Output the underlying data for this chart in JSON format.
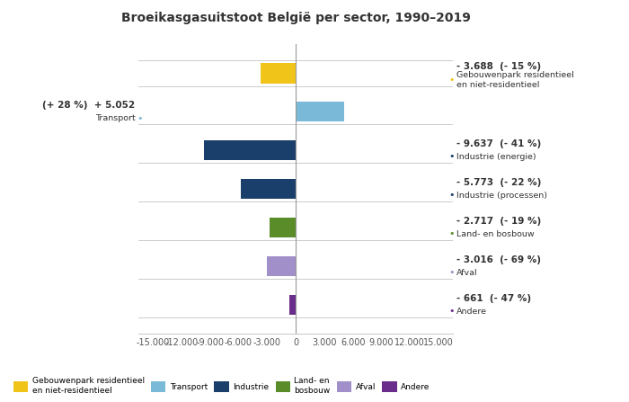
{
  "title": "Broeikasgasuitstoot België per sector, 1990–2019",
  "categories": [
    "Gebouwenpark residentieel\nen niet-residentieel",
    "Transport",
    "Industrie (energie)",
    "Industrie (processen)",
    "Land- en bosbouw",
    "Afval",
    "Andere"
  ],
  "values": [
    -3688,
    5052,
    -9637,
    -5773,
    -2717,
    -3016,
    -661
  ],
  "colors": [
    "#f0c419",
    "#7ab9d8",
    "#1b3f6b",
    "#1b3f6b",
    "#5a8c2a",
    "#a08fc8",
    "#6b2d8b"
  ],
  "annot": [
    {
      "val": "- 3.688  (- 15 %)",
      "sub": "Gebouwenpark residentieel\nen niet-residentieel",
      "dot": "#f0c419",
      "side": "right"
    },
    {
      "val": "(+ 28 %)  + 5.052",
      "sub": "Transport",
      "dot": "#7ab9d8",
      "side": "left"
    },
    {
      "val": "- 9.637  (- 41 %)",
      "sub": "Industrie (energie)",
      "dot": "#1b3f6b",
      "side": "right"
    },
    {
      "val": "- 5.773  (- 22 %)",
      "sub": "Industrie (processen)",
      "dot": "#1b3f6b",
      "side": "right"
    },
    {
      "val": "- 2.717  (- 19 %)",
      "sub": "Land- en bosbouw",
      "dot": "#5a8c2a",
      "side": "right"
    },
    {
      "val": "- 3.016  (- 69 %)",
      "sub": "Afval",
      "dot": "#a08fc8",
      "side": "right"
    },
    {
      "val": "- 661  (- 47 %)",
      "sub": "Andere",
      "dot": "#6b2d8b",
      "side": "right"
    }
  ],
  "xlim": [
    -16500,
    16500
  ],
  "xticks": [
    -15000,
    -12000,
    -9000,
    -6000,
    -3000,
    0,
    3000,
    6000,
    9000,
    12000,
    15000
  ],
  "xtick_labels": [
    "-15.000",
    "-12.000",
    "-9.000",
    "-6.000",
    "-3.000",
    "0",
    "3.000",
    "6.000",
    "9.000",
    "12.000",
    "15.000"
  ],
  "legend_items": [
    {
      "label": "Gebouwenpark residentieel\nen niet-residentieel",
      "color": "#f0c419"
    },
    {
      "label": "Transport",
      "color": "#7ab9d8"
    },
    {
      "label": "Industrie",
      "color": "#1b3f6b"
    },
    {
      "label": "Land- en\nbosbouw",
      "color": "#5a8c2a"
    },
    {
      "label": "Afval",
      "color": "#a08fc8"
    },
    {
      "label": "Andere",
      "color": "#6b2d8b"
    }
  ],
  "bar_height": 0.52,
  "bg": "#ffffff",
  "grid_color": "#cccccc",
  "text_color": "#333333"
}
